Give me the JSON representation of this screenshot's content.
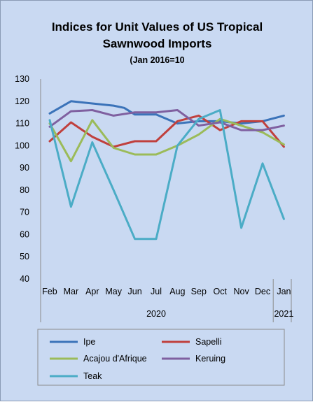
{
  "chart_data": {
    "type": "line",
    "title": "Indices for Unit Values of US Tropical Sawnwood Imports",
    "title_lines": [
      "Indices for Unit Values of US Tropical",
      "Sawnwood Imports"
    ],
    "subtitle": "(Jan 2016=10",
    "categories": [
      "Feb",
      "Mar",
      "Apr",
      "May",
      "Jun",
      "Jul",
      "Aug",
      "Sep",
      "Oct",
      "Nov",
      "Dec",
      "Jan"
    ],
    "year_labels": [
      {
        "label": "2020",
        "span": [
          0,
          10
        ]
      },
      {
        "label": "2021",
        "span": [
          11,
          11
        ]
      }
    ],
    "ylim": [
      40,
      130
    ],
    "yticks": [
      40,
      50,
      60,
      70,
      80,
      90,
      100,
      110,
      120,
      130
    ],
    "grid": false,
    "legend_position": "bottom",
    "series": [
      {
        "name": "Ipe",
        "color": "#3b73b9",
        "points": [
          [
            0,
            114.5
          ],
          [
            1,
            120
          ],
          [
            2,
            119
          ],
          [
            3,
            118
          ],
          [
            3.5,
            117
          ],
          [
            4,
            114
          ],
          [
            5,
            114
          ],
          [
            6,
            110
          ],
          [
            7,
            111
          ],
          [
            8,
            111
          ],
          [
            9,
            110
          ],
          [
            10,
            111
          ],
          [
            11,
            113.5
          ]
        ]
      },
      {
        "name": "Sapelli",
        "color": "#c0403d",
        "points": [
          [
            0,
            102
          ],
          [
            1,
            110.5
          ],
          [
            2,
            104
          ],
          [
            3,
            99.5
          ],
          [
            4,
            102
          ],
          [
            5,
            102
          ],
          [
            6,
            111
          ],
          [
            7,
            113.5
          ],
          [
            8,
            107
          ],
          [
            9,
            111
          ],
          [
            10,
            111
          ],
          [
            11,
            99.5
          ]
        ]
      },
      {
        "name": "Acajou d'Afrique",
        "color": "#9bbb59",
        "points": [
          [
            0,
            110
          ],
          [
            1,
            93
          ],
          [
            2,
            111.5
          ],
          [
            3,
            99
          ],
          [
            4,
            96
          ],
          [
            5,
            96
          ],
          [
            6,
            100
          ],
          [
            7,
            105
          ],
          [
            8,
            112
          ],
          [
            9,
            109
          ],
          [
            10,
            106
          ],
          [
            11,
            100.5
          ]
        ]
      },
      {
        "name": "Keruing",
        "color": "#7f60a0",
        "points": [
          [
            0,
            108.5
          ],
          [
            1,
            115.5
          ],
          [
            2,
            116
          ],
          [
            3,
            113.5
          ],
          [
            4,
            115
          ],
          [
            5,
            115
          ],
          [
            6,
            116
          ],
          [
            7,
            109
          ],
          [
            8,
            110.5
          ],
          [
            9,
            107
          ],
          [
            10,
            107
          ],
          [
            11,
            109
          ]
        ]
      },
      {
        "name": "Teak",
        "color": "#4bacc6",
        "points": [
          [
            0,
            111.5
          ],
          [
            1,
            72.5
          ],
          [
            2,
            101.5
          ],
          [
            3,
            80
          ],
          [
            4,
            58
          ],
          [
            5,
            58
          ],
          [
            6,
            100
          ],
          [
            7,
            112
          ],
          [
            8,
            116
          ],
          [
            9,
            63
          ],
          [
            10,
            92
          ],
          [
            11,
            67
          ]
        ]
      }
    ]
  }
}
